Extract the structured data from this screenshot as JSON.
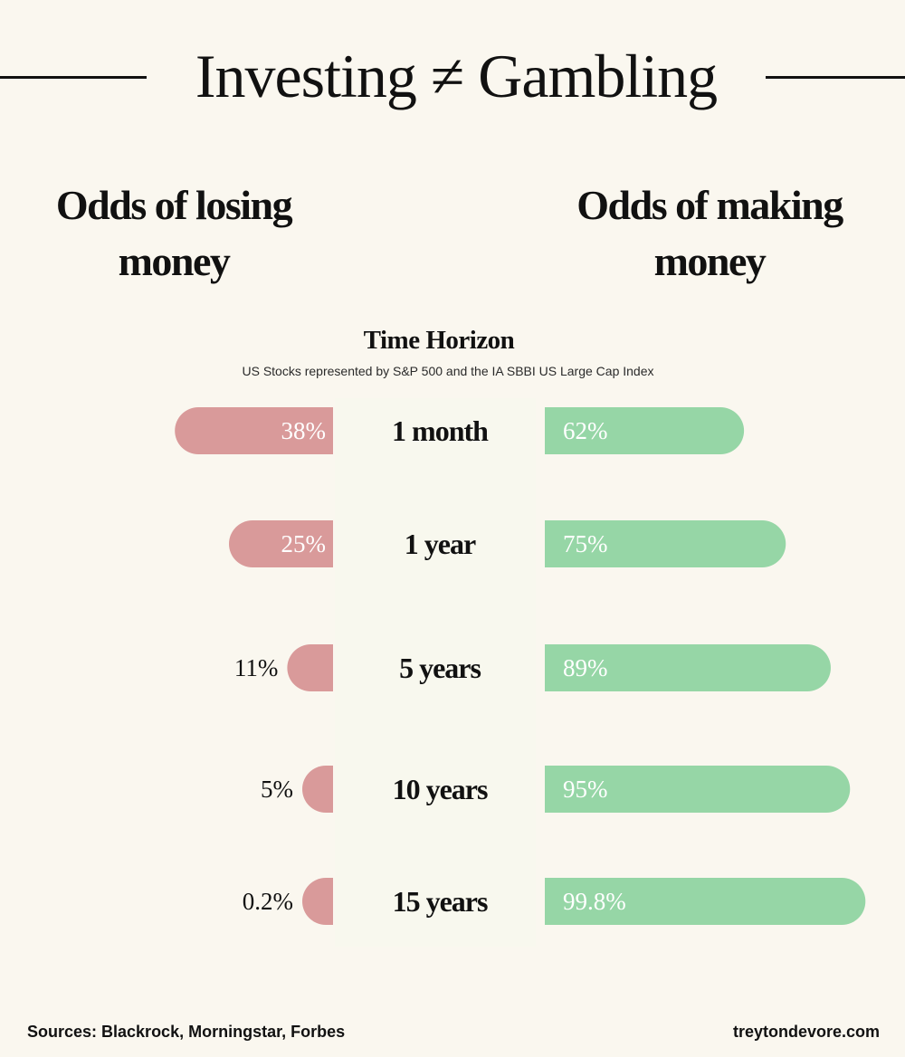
{
  "header": {
    "title": "Investing ≠ Gambling"
  },
  "headings": {
    "left": "Odds of losing money",
    "right": "Odds of making money"
  },
  "axis": {
    "title": "Time Horizon",
    "subtitle": "US Stocks represented by S&P 500 and the IA SBBI US Large Cap Index"
  },
  "chart_data": {
    "type": "bar",
    "orientation": "horizontal",
    "layout": "diverging",
    "categories": [
      "1 month",
      "1 year",
      "5 years",
      "10 years",
      "15 years"
    ],
    "series": [
      {
        "name": "Odds of losing money",
        "values": [
          38,
          25,
          11,
          5,
          0.2
        ],
        "labels": [
          "38%",
          "25%",
          "11%",
          "5%",
          "0.2%"
        ],
        "color": "#d99a9a",
        "direction": "left"
      },
      {
        "name": "Odds of making money",
        "values": [
          62,
          75,
          89,
          95,
          99.8
        ],
        "labels": [
          "62%",
          "75%",
          "89%",
          "95%",
          "99.8%"
        ],
        "color": "#96d6a6",
        "direction": "right"
      }
    ],
    "xlim": [
      0,
      100
    ],
    "grid": false,
    "legend": "none"
  },
  "footer": {
    "sources": "Sources: Blackrock, Morningstar, Forbes",
    "website": "treytondevore.com"
  }
}
